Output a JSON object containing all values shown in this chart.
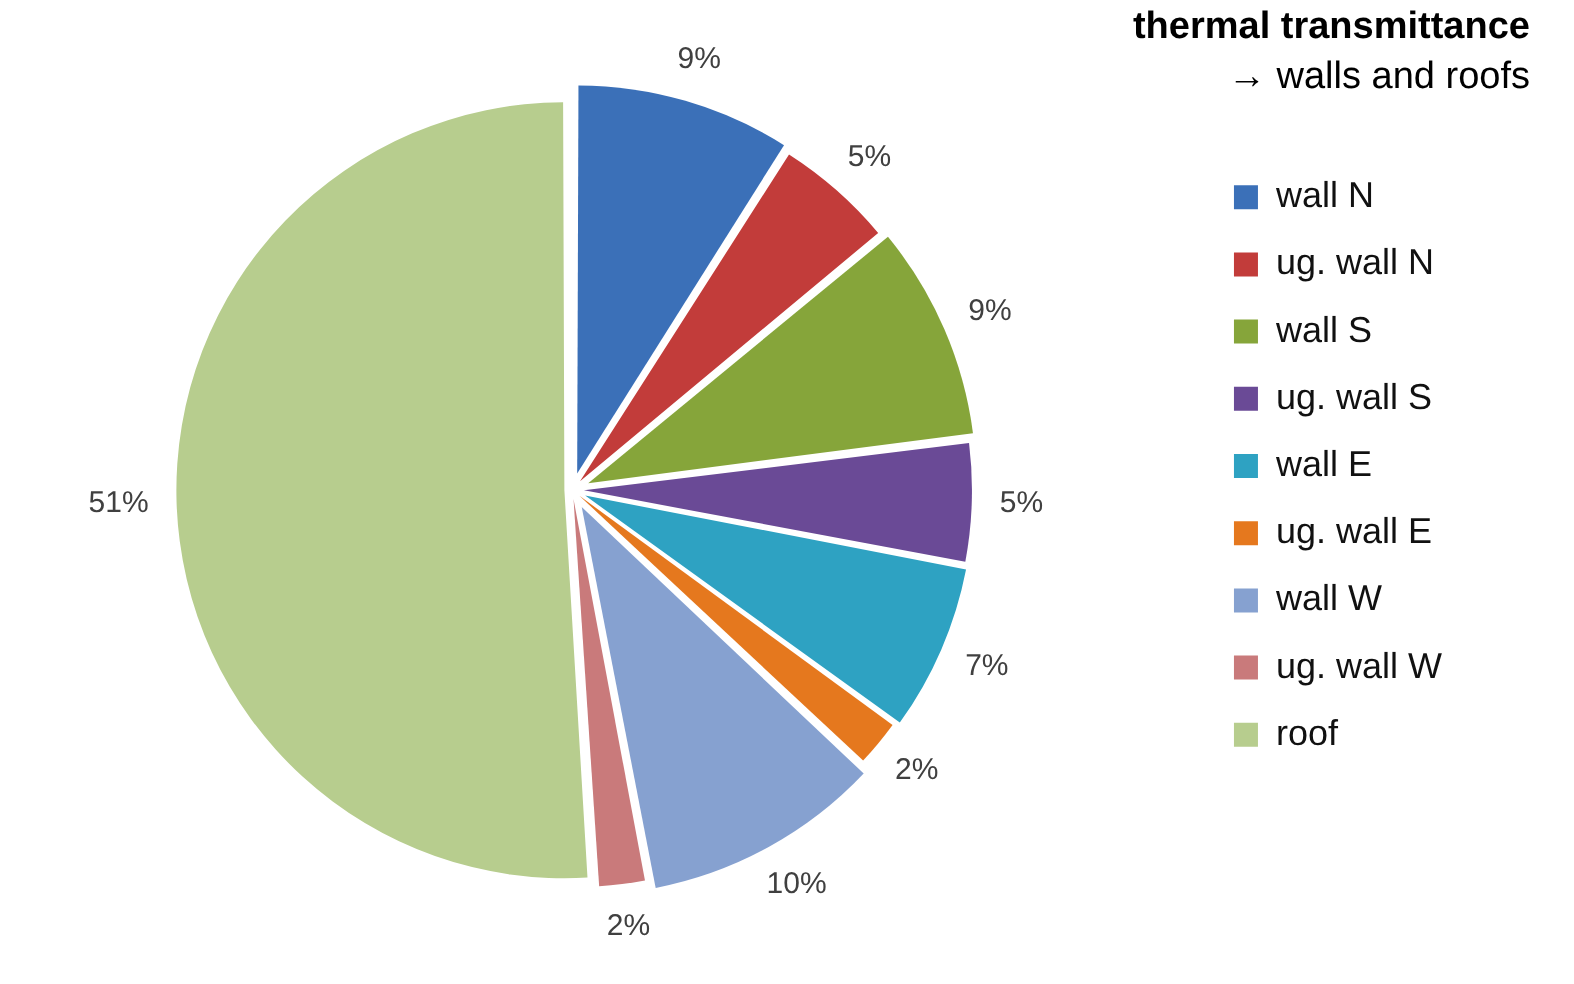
{
  "chart_data": {
    "type": "pie",
    "title": "thermal transmittance",
    "subtitle": "→ walls and roofs",
    "categories": [
      "wall N",
      "ug. wall N",
      "wall S",
      "ug. wall S",
      "wall E",
      "ug. wall E",
      "wall W",
      "ug. wall W",
      "roof"
    ],
    "values": [
      9,
      5,
      9,
      5,
      7,
      2,
      10,
      2,
      51
    ],
    "colors": [
      "#3b70b8",
      "#c23c3a",
      "#86a53a",
      "#6a4a96",
      "#2ea2c2",
      "#e5781e",
      "#86a1d0",
      "#c97a7b",
      "#b7cd8e"
    ],
    "value_labels": [
      "9%",
      "5%",
      "9%",
      "5%",
      "7%",
      "2%",
      "10%",
      "2%",
      "51%"
    ],
    "legend": "right"
  }
}
